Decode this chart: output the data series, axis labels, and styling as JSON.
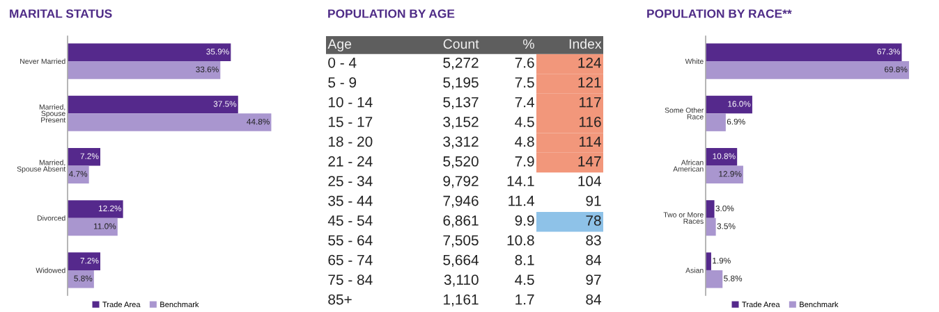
{
  "chart_data": [
    {
      "type": "bar",
      "orientation": "horizontal",
      "title": "MARITAL STATUS",
      "categories": [
        "Never Married",
        "Married,\nSpouse\nPresent",
        "Married,\nSpouse Absent",
        "Divorced",
        "Widowed"
      ],
      "series": [
        {
          "name": "Trade Area",
          "color": "#55298c",
          "values": [
            35.9,
            37.5,
            7.2,
            12.2,
            7.2
          ],
          "value_labels": [
            "35.9%",
            "37.5%",
            "7.2%",
            "12.2%",
            "7.2%"
          ]
        },
        {
          "name": "Benchmark",
          "color": "#a996cf",
          "values": [
            33.6,
            44.8,
            4.7,
            11.0,
            5.8
          ],
          "value_labels": [
            "33.6%",
            "44.8%",
            "4.7%",
            "11.0%",
            "5.8%"
          ]
        }
      ],
      "legend": "bottom",
      "tick_labels": "y"
    },
    {
      "type": "heatmap",
      "title": "POPULATION BY AGE",
      "ylabel": "Age",
      "categories": [
        "Count",
        "%",
        "Index"
      ],
      "y_categories": [
        "0 - 4",
        "5 - 9",
        "10 - 14",
        "15 - 17",
        "18 - 20",
        "21 - 24",
        "25 - 34",
        "35 - 44",
        "45 - 54",
        "55 - 64",
        "65 - 74",
        "75 - 84",
        "85+"
      ],
      "cells": [
        [
          5272,
          7.6,
          124
        ],
        [
          5195,
          7.5,
          121
        ],
        [
          5137,
          7.4,
          117
        ],
        [
          3152,
          4.5,
          116
        ],
        [
          3312,
          4.8,
          114
        ],
        [
          5520,
          7.9,
          147
        ],
        [
          9792,
          14.1,
          104
        ],
        [
          7946,
          11.4,
          91
        ],
        [
          6861,
          9.9,
          78
        ],
        [
          7505,
          10.8,
          83
        ],
        [
          5664,
          8.1,
          84
        ],
        [
          3110,
          4.5,
          97
        ],
        [
          1161,
          1.7,
          84
        ]
      ],
      "cell_labels": [
        [
          "5,272",
          "7.6",
          "124"
        ],
        [
          "5,195",
          "7.5",
          "121"
        ],
        [
          "5,137",
          "7.4",
          "117"
        ],
        [
          "3,152",
          "4.5",
          "116"
        ],
        [
          "3,312",
          "4.8",
          "114"
        ],
        [
          "5,520",
          "7.9",
          "147"
        ],
        [
          "9,792",
          "14.1",
          "104"
        ],
        [
          "7,946",
          "11.4",
          "91"
        ],
        [
          "6,861",
          "9.9",
          "78"
        ],
        [
          "7,505",
          "10.8",
          "83"
        ],
        [
          "5,664",
          "8.1",
          "84"
        ],
        [
          "3,110",
          "4.5",
          "97"
        ],
        [
          "1,161",
          "1.7",
          "84"
        ]
      ],
      "colors": [
        [
          null,
          null,
          "#f2977b"
        ],
        [
          null,
          null,
          "#f2977b"
        ],
        [
          null,
          null,
          "#f2977b"
        ],
        [
          null,
          null,
          "#f2977b"
        ],
        [
          null,
          null,
          "#f2977b"
        ],
        [
          null,
          null,
          "#f2977b"
        ],
        [
          null,
          null,
          null
        ],
        [
          null,
          null,
          null
        ],
        [
          null,
          null,
          "#8ec2e8"
        ],
        [
          null,
          null,
          null
        ],
        [
          null,
          null,
          null
        ],
        [
          null,
          null,
          null
        ],
        [
          null,
          null,
          null
        ]
      ]
    },
    {
      "type": "bar",
      "orientation": "horizontal",
      "title": "POPULATION BY RACE**",
      "categories": [
        "White",
        "Some Other\nRace",
        "African\nAmerican",
        "Two or More\nRaces",
        "Asian"
      ],
      "series": [
        {
          "name": "Trade Area",
          "color": "#55298c",
          "values": [
            67.3,
            16.0,
            10.8,
            3.0,
            1.9
          ],
          "value_labels": [
            "67.3%",
            "16.0%",
            "10.8%",
            "3.0%",
            "1.9%"
          ]
        },
        {
          "name": "Benchmark",
          "color": "#a996cf",
          "values": [
            69.8,
            6.9,
            12.9,
            3.5,
            5.8
          ],
          "value_labels": [
            "69.8%",
            "6.9%",
            "12.9%",
            "3.5%",
            "5.8%"
          ]
        }
      ],
      "legend": "bottom",
      "tick_labels": "y"
    }
  ]
}
